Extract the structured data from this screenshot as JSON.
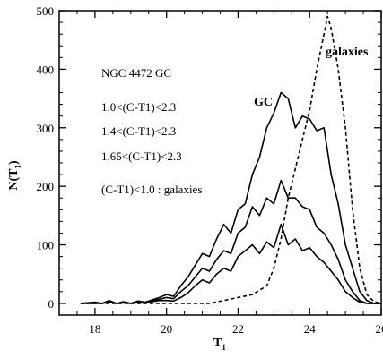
{
  "chart_data": {
    "type": "line",
    "xlabel": "T",
    "xlabel_sub": "1",
    "ylabel": "N(T",
    "ylabel_sub": "1",
    "ylabel_close": ")",
    "xlim": [
      17,
      26
    ],
    "ylim": [
      -20,
      500
    ],
    "xticks": [
      18,
      20,
      22,
      24,
      26
    ],
    "xtick_labels": [
      "18",
      "20",
      "22",
      "24",
      "26"
    ],
    "yticks": [
      0,
      100,
      200,
      300,
      400,
      500
    ],
    "ytick_labels": [
      "0",
      "100",
      "200",
      "300",
      "400",
      "500"
    ],
    "grid": false,
    "annotations": [
      "NGC 4472 GC",
      "1.0<(C-T1)<2.3",
      "1.4<(C-T1)<2.3",
      "1.65<(C-T1)<2.3",
      "(C-T1)<1.0 : galaxies"
    ],
    "series": [
      {
        "name": "GC",
        "style": "solid",
        "x": [
          17.6,
          18.0,
          18.2,
          18.4,
          18.6,
          18.8,
          19.0,
          19.2,
          19.4,
          19.6,
          19.8,
          20.0,
          20.2,
          20.4,
          20.6,
          20.8,
          21.0,
          21.2,
          21.4,
          21.6,
          21.8,
          22.0,
          22.2,
          22.4,
          22.6,
          22.8,
          23.0,
          23.2,
          23.4,
          23.6,
          23.8,
          24.0,
          24.2,
          24.4,
          24.6,
          24.8,
          25.0,
          25.2,
          25.4,
          25.6,
          25.8,
          26.0
        ],
        "y": [
          0,
          2,
          0,
          5,
          0,
          3,
          0,
          4,
          2,
          6,
          10,
          15,
          12,
          30,
          45,
          65,
          85,
          80,
          110,
          135,
          120,
          160,
          170,
          220,
          250,
          300,
          325,
          360,
          350,
          300,
          320,
          315,
          295,
          300,
          220,
          170,
          100,
          60,
          20,
          5,
          0,
          0
        ]
      },
      {
        "name": "1.4<(C-T1)<2.3",
        "style": "solid",
        "x": [
          17.6,
          18.0,
          18.2,
          18.4,
          18.6,
          18.8,
          19.0,
          19.2,
          19.4,
          19.6,
          19.8,
          20.0,
          20.2,
          20.4,
          20.6,
          20.8,
          21.0,
          21.2,
          21.4,
          21.6,
          21.8,
          22.0,
          22.2,
          22.4,
          22.6,
          22.8,
          23.0,
          23.2,
          23.4,
          23.6,
          23.8,
          24.0,
          24.2,
          24.4,
          24.6,
          24.8,
          25.0,
          25.2,
          25.4,
          25.6,
          25.8,
          26.0
        ],
        "y": [
          0,
          1,
          0,
          3,
          0,
          2,
          0,
          3,
          1,
          4,
          7,
          10,
          8,
          20,
          30,
          45,
          60,
          55,
          75,
          90,
          85,
          120,
          130,
          165,
          150,
          180,
          170,
          210,
          180,
          180,
          165,
          160,
          130,
          120,
          100,
          75,
          40,
          20,
          5,
          0,
          0,
          0
        ]
      },
      {
        "name": "1.65<(C-T1)<2.3",
        "style": "solid",
        "x": [
          17.6,
          18.0,
          18.2,
          18.4,
          18.6,
          18.8,
          19.0,
          19.2,
          19.4,
          19.6,
          19.8,
          20.0,
          20.2,
          20.4,
          20.6,
          20.8,
          21.0,
          21.2,
          21.4,
          21.6,
          21.8,
          22.0,
          22.2,
          22.4,
          22.6,
          22.8,
          23.0,
          23.2,
          23.4,
          23.6,
          23.8,
          24.0,
          24.2,
          24.4,
          24.6,
          24.8,
          25.0,
          25.2,
          25.4,
          25.6,
          25.8,
          26.0
        ],
        "y": [
          0,
          0,
          0,
          2,
          0,
          1,
          0,
          2,
          0,
          3,
          5,
          5,
          4,
          10,
          18,
          30,
          40,
          35,
          50,
          60,
          55,
          80,
          90,
          100,
          85,
          105,
          95,
          135,
          100,
          110,
          90,
          95,
          80,
          70,
          55,
          40,
          20,
          10,
          2,
          0,
          0,
          0
        ]
      },
      {
        "name": "galaxies",
        "style": "dashed",
        "x": [
          17.6,
          18.0,
          18.4,
          18.8,
          19.2,
          19.6,
          20.0,
          20.4,
          20.8,
          21.2,
          21.6,
          22.0,
          22.4,
          22.8,
          23.0,
          23.2,
          23.4,
          23.6,
          23.8,
          24.0,
          24.2,
          24.4,
          24.5,
          24.6,
          24.8,
          25.0,
          25.2,
          25.4,
          25.6,
          25.8,
          26.0
        ],
        "y": [
          0,
          0,
          0,
          0,
          0,
          0,
          0,
          0,
          0,
          0,
          5,
          10,
          15,
          30,
          60,
          110,
          180,
          230,
          280,
          330,
          400,
          460,
          490,
          470,
          400,
          300,
          160,
          60,
          15,
          3,
          0
        ]
      }
    ]
  }
}
